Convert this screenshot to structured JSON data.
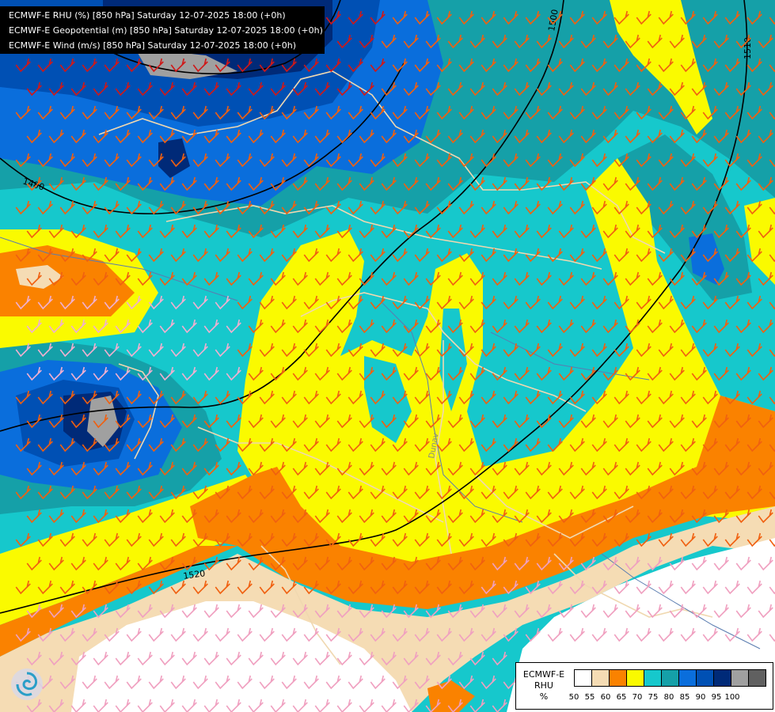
{
  "header": {
    "lines": [
      "ECMWF-E RHU (%) [850 hPa] Saturday 12-07-2025 18:00 (+0h)",
      "ECMWF-E Geopotential (m) [850 hPa] Saturday 12-07-2025 18:00 (+0h)",
      "ECMWF-E Wind (m/s) [850 hPa] Saturday 12-07-2025 18:00 (+0h)"
    ]
  },
  "legend": {
    "title_lines": [
      "ECMWF-E",
      "RHU",
      "%"
    ],
    "colors": [
      "#ffffff",
      "#f5dcb4",
      "#fa8200",
      "#fafa00",
      "#16c8cc",
      "#15a0a8",
      "#0a6edc",
      "#0050b4",
      "#002a78",
      "#a0a0a0",
      "#606060"
    ],
    "ticks": [
      "50",
      "55",
      "60",
      "65",
      "70",
      "75",
      "80",
      "85",
      "90",
      "95",
      "100"
    ]
  },
  "contours": {
    "labels": [
      "1480",
      "1500",
      "1520",
      "1510"
    ]
  },
  "river_label": "Dunav",
  "logo": {
    "icon": "ecmwf-swirl-logo-icon"
  }
}
